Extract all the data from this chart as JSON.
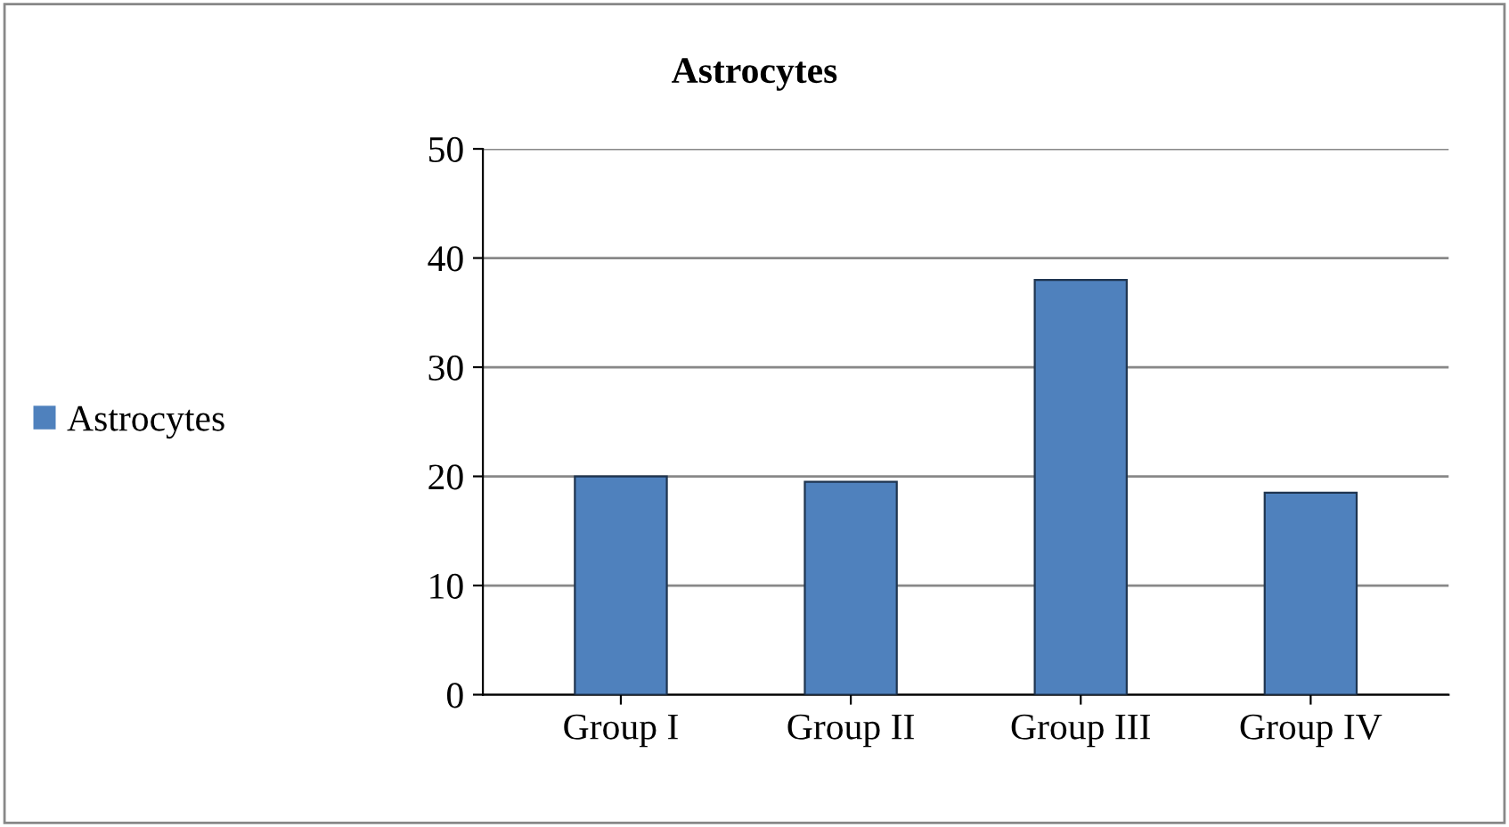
{
  "chart_data": {
    "type": "bar",
    "title": "Astrocytes",
    "categories": [
      "Group I",
      "Group II",
      "Group III",
      "Group IV"
    ],
    "series": [
      {
        "name": "Astrocytes",
        "color": "#4f81bd",
        "values": [
          20,
          19.5,
          38,
          18.5
        ]
      }
    ],
    "ylim": [
      0,
      50
    ],
    "yticks": [
      0,
      10,
      20,
      30,
      40,
      50
    ],
    "grid": "y",
    "legend": "left"
  }
}
